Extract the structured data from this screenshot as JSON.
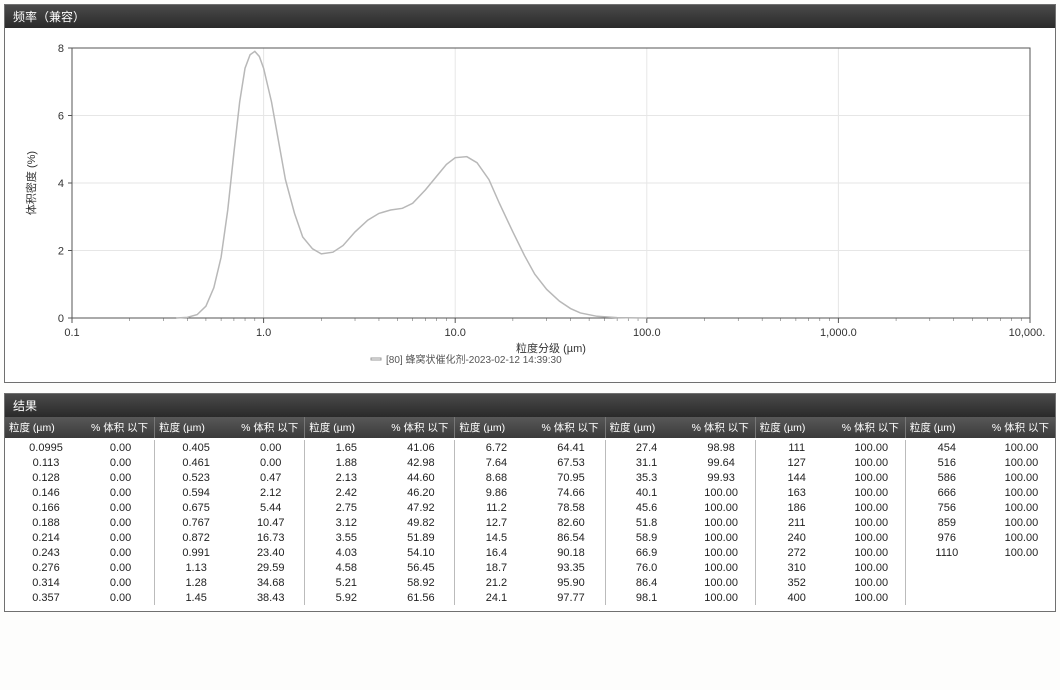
{
  "freq_panel": {
    "title": "频率（兼容）",
    "chart": {
      "type": "line",
      "x_scale": "log",
      "xlim": [
        0.1,
        10000
      ],
      "ylim": [
        0,
        8
      ],
      "ytick_step": 2,
      "x_ticks": [
        0.1,
        1.0,
        10.0,
        100.0,
        1000.0,
        10000.0
      ],
      "x_tick_labels": [
        "0.1",
        "1.0",
        "10.0",
        "100.0",
        "1,000.0",
        "10,000.0"
      ],
      "xlabel": "粒度分级 (µm)",
      "ylabel": "体积密度 (%)",
      "grid_color": "#e6e6e6",
      "axis_color": "#555555",
      "background_color": "#ffffff",
      "series": [
        {
          "name": "[80] 蜂窝状催化剂-2023-02-12 14:39:30",
          "color": "#b8b8b8",
          "line_width": 1.5,
          "x": [
            0.35,
            0.4,
            0.45,
            0.5,
            0.55,
            0.6,
            0.65,
            0.7,
            0.75,
            0.8,
            0.85,
            0.9,
            0.95,
            1.0,
            1.1,
            1.2,
            1.3,
            1.45,
            1.6,
            1.8,
            2.0,
            2.3,
            2.6,
            3.0,
            3.5,
            4.0,
            4.6,
            5.3,
            6.0,
            7.0,
            8.0,
            9.0,
            10.0,
            11.5,
            13.0,
            15.0,
            17.0,
            20.0,
            23.0,
            26.0,
            30.0,
            35.0,
            40.0,
            45.0,
            55.0,
            70.0,
            100.0
          ],
          "y": [
            0.0,
            0.02,
            0.1,
            0.35,
            0.9,
            1.8,
            3.2,
            4.9,
            6.4,
            7.4,
            7.8,
            7.9,
            7.75,
            7.4,
            6.4,
            5.2,
            4.1,
            3.1,
            2.4,
            2.05,
            1.9,
            1.95,
            2.15,
            2.55,
            2.9,
            3.1,
            3.2,
            3.25,
            3.4,
            3.8,
            4.2,
            4.55,
            4.75,
            4.78,
            4.6,
            4.1,
            3.4,
            2.55,
            1.85,
            1.3,
            0.85,
            0.5,
            0.28,
            0.15,
            0.05,
            0.01,
            0.0
          ]
        }
      ],
      "legend_prefix": "— "
    }
  },
  "results_panel": {
    "title": "结果",
    "col_header_size": "粒度 (µm)",
    "col_header_vol": "% 体积 以下",
    "groups": [
      [
        [
          "0.0995",
          "0.00"
        ],
        [
          "0.113",
          "0.00"
        ],
        [
          "0.128",
          "0.00"
        ],
        [
          "0.146",
          "0.00"
        ],
        [
          "0.166",
          "0.00"
        ],
        [
          "0.188",
          "0.00"
        ],
        [
          "0.214",
          "0.00"
        ],
        [
          "0.243",
          "0.00"
        ],
        [
          "0.276",
          "0.00"
        ],
        [
          "0.314",
          "0.00"
        ],
        [
          "0.357",
          "0.00"
        ]
      ],
      [
        [
          "0.405",
          "0.00"
        ],
        [
          "0.461",
          "0.00"
        ],
        [
          "0.523",
          "0.47"
        ],
        [
          "0.594",
          "2.12"
        ],
        [
          "0.675",
          "5.44"
        ],
        [
          "0.767",
          "10.47"
        ],
        [
          "0.872",
          "16.73"
        ],
        [
          "0.991",
          "23.40"
        ],
        [
          "1.13",
          "29.59"
        ],
        [
          "1.28",
          "34.68"
        ],
        [
          "1.45",
          "38.43"
        ]
      ],
      [
        [
          "1.65",
          "41.06"
        ],
        [
          "1.88",
          "42.98"
        ],
        [
          "2.13",
          "44.60"
        ],
        [
          "2.42",
          "46.20"
        ],
        [
          "2.75",
          "47.92"
        ],
        [
          "3.12",
          "49.82"
        ],
        [
          "3.55",
          "51.89"
        ],
        [
          "4.03",
          "54.10"
        ],
        [
          "4.58",
          "56.45"
        ],
        [
          "5.21",
          "58.92"
        ],
        [
          "5.92",
          "61.56"
        ]
      ],
      [
        [
          "6.72",
          "64.41"
        ],
        [
          "7.64",
          "67.53"
        ],
        [
          "8.68",
          "70.95"
        ],
        [
          "9.86",
          "74.66"
        ],
        [
          "11.2",
          "78.58"
        ],
        [
          "12.7",
          "82.60"
        ],
        [
          "14.5",
          "86.54"
        ],
        [
          "16.4",
          "90.18"
        ],
        [
          "18.7",
          "93.35"
        ],
        [
          "21.2",
          "95.90"
        ],
        [
          "24.1",
          "97.77"
        ]
      ],
      [
        [
          "27.4",
          "98.98"
        ],
        [
          "31.1",
          "99.64"
        ],
        [
          "35.3",
          "99.93"
        ],
        [
          "40.1",
          "100.00"
        ],
        [
          "45.6",
          "100.00"
        ],
        [
          "51.8",
          "100.00"
        ],
        [
          "58.9",
          "100.00"
        ],
        [
          "66.9",
          "100.00"
        ],
        [
          "76.0",
          "100.00"
        ],
        [
          "86.4",
          "100.00"
        ],
        [
          "98.1",
          "100.00"
        ]
      ],
      [
        [
          "111",
          "100.00"
        ],
        [
          "127",
          "100.00"
        ],
        [
          "144",
          "100.00"
        ],
        [
          "163",
          "100.00"
        ],
        [
          "186",
          "100.00"
        ],
        [
          "211",
          "100.00"
        ],
        [
          "240",
          "100.00"
        ],
        [
          "272",
          "100.00"
        ],
        [
          "310",
          "100.00"
        ],
        [
          "352",
          "100.00"
        ],
        [
          "400",
          "100.00"
        ]
      ],
      [
        [
          "454",
          "100.00"
        ],
        [
          "516",
          "100.00"
        ],
        [
          "586",
          "100.00"
        ],
        [
          "666",
          "100.00"
        ],
        [
          "756",
          "100.00"
        ],
        [
          "859",
          "100.00"
        ],
        [
          "976",
          "100.00"
        ],
        [
          "1110",
          "100.00"
        ]
      ]
    ]
  }
}
